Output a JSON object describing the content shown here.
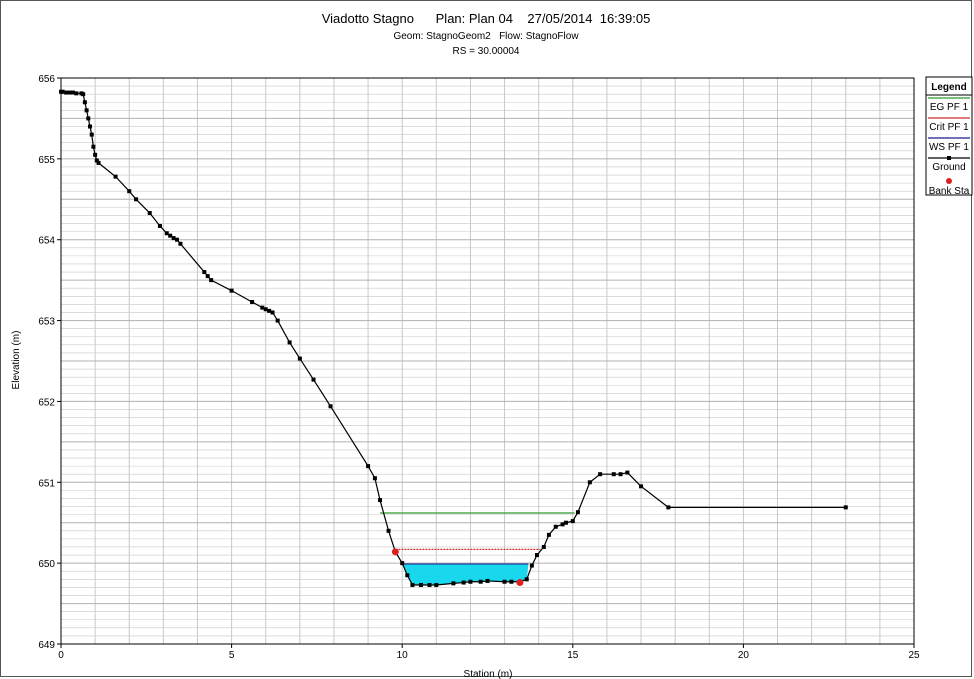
{
  "chart_data": {
    "type": "line",
    "title_line1": "Viadotto Stagno      Plan: Plan 04    27/05/2014  16:39:05",
    "title_line2": "Geom: StagnoGeom2   Flow: StagnoFlow",
    "title_line3": "RS = 30.00004",
    "xlabel": "Station (m)",
    "ylabel": "Elevation (m)",
    "xlim": [
      0,
      25
    ],
    "ylim": [
      649,
      656
    ],
    "xticks": [
      0,
      5,
      10,
      15,
      20,
      25
    ],
    "yticks": [
      649,
      650,
      651,
      652,
      653,
      654,
      655,
      656
    ],
    "grid": true,
    "legend_title": "Legend",
    "legend_placement": "top-right",
    "colors": {
      "eg": "#2e9b2e",
      "crit": "#c83232",
      "ws": "#1c1c8c",
      "water_fill": "#19d7ec",
      "ground": "#000000",
      "bank": "#e02020",
      "grid": "#c8c8c8"
    },
    "series": [
      {
        "name": "EG PF 1",
        "x": [
          9.35,
          15.05
        ],
        "y": [
          650.62,
          650.62
        ]
      },
      {
        "name": "Crit PF 1",
        "x": [
          9.8,
          14.05
        ],
        "y": [
          650.17,
          650.17
        ]
      },
      {
        "name": "WS PF 1",
        "x": [
          10.0,
          13.7
        ],
        "y": [
          649.99,
          649.99
        ]
      },
      {
        "name": "Ground",
        "x": [
          0.0,
          0.05,
          0.15,
          0.25,
          0.35,
          0.45,
          0.6,
          0.65,
          0.7,
          0.75,
          0.8,
          0.85,
          0.9,
          0.95,
          1.0,
          1.05,
          1.1,
          1.6,
          2.0,
          2.2,
          2.6,
          2.9,
          3.1,
          3.2,
          3.3,
          3.4,
          3.5,
          4.2,
          4.3,
          4.4,
          5.0,
          5.6,
          5.9,
          6.0,
          6.1,
          6.2,
          6.35,
          6.7,
          7.0,
          7.4,
          7.9,
          9.0,
          9.2,
          9.35,
          9.6,
          9.8,
          10.0,
          10.15,
          10.3,
          10.55,
          10.8,
          11.0,
          11.5,
          11.8,
          12.0,
          12.3,
          12.5,
          13.0,
          13.2,
          13.45,
          13.65,
          13.8,
          13.95,
          14.15,
          14.3,
          14.5,
          14.7,
          14.8,
          15.0,
          15.15,
          15.5,
          15.8,
          16.2,
          16.4,
          16.6,
          17.0,
          17.8,
          23.0
        ],
        "y": [
          655.83,
          655.83,
          655.82,
          655.82,
          655.82,
          655.81,
          655.81,
          655.8,
          655.7,
          655.6,
          655.5,
          655.4,
          655.3,
          655.15,
          655.05,
          654.98,
          654.95,
          654.78,
          654.6,
          654.5,
          654.33,
          654.17,
          654.08,
          654.05,
          654.02,
          654.0,
          653.95,
          653.6,
          653.55,
          653.5,
          653.37,
          653.23,
          653.16,
          653.14,
          653.12,
          653.1,
          653.0,
          652.73,
          652.53,
          652.27,
          651.94,
          651.2,
          651.05,
          650.78,
          650.4,
          650.14,
          650.0,
          649.85,
          649.73,
          649.73,
          649.73,
          649.73,
          649.75,
          649.76,
          649.77,
          649.77,
          649.78,
          649.77,
          649.77,
          649.77,
          649.8,
          649.97,
          650.1,
          650.2,
          650.35,
          650.45,
          650.48,
          650.5,
          650.52,
          650.63,
          651.0,
          651.1,
          651.1,
          651.1,
          651.12,
          650.95,
          650.69,
          650.69
        ]
      },
      {
        "name": "Bank Sta",
        "x": [
          9.8,
          13.45
        ],
        "y": [
          650.14,
          649.76
        ]
      }
    ]
  }
}
